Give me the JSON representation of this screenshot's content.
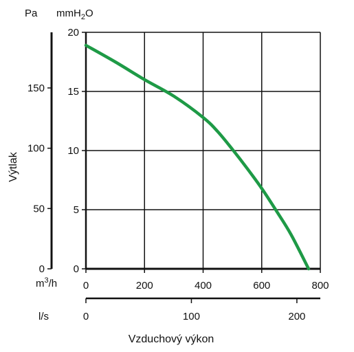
{
  "chart_data": {
    "type": "line",
    "xlabel": "Vzduchový výkon",
    "ylabel": "Výtlak",
    "units": {
      "pa": "Pa",
      "mmh2o_prefix": "mmH",
      "mmh2o_sub": "2",
      "mmh2o_suffix": "O",
      "m3h_prefix": "m",
      "m3h_sup": "3",
      "m3h_suffix": "/h",
      "ls": "l/s"
    },
    "x_m3h": {
      "ticks": [
        0,
        200,
        400,
        600,
        800
      ],
      "range": [
        0,
        800
      ]
    },
    "x_ls": {
      "ticks": [
        0,
        100,
        200
      ]
    },
    "y_mmh2o": {
      "ticks": [
        0,
        5,
        10,
        15,
        20
      ],
      "range": [
        0,
        20
      ]
    },
    "y_pa": {
      "ticks": [
        0,
        50,
        100,
        150
      ]
    },
    "grid": true,
    "series": [
      {
        "color": "#1e9a46",
        "x": [
          0,
          100,
          200,
          300,
          400,
          450,
          500,
          550,
          600,
          650,
          700,
          760
        ],
        "y": [
          18.9,
          17.5,
          16.0,
          14.6,
          12.8,
          11.6,
          10.1,
          8.5,
          6.8,
          4.9,
          2.9,
          0
        ]
      }
    ]
  }
}
